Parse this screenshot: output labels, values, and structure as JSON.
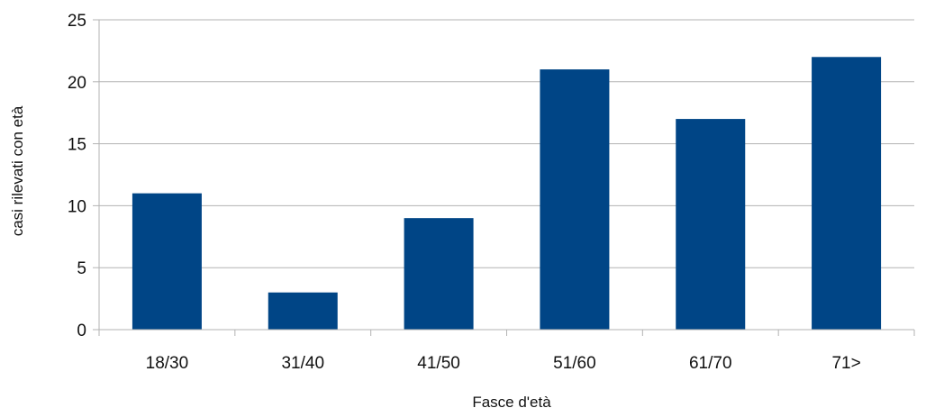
{
  "chart_data": {
    "type": "bar",
    "categories": [
      "18/30",
      "31/40",
      "41/50",
      "51/60",
      "61/70",
      "71>"
    ],
    "values": [
      11,
      3,
      9,
      21,
      17,
      22
    ],
    "xlabel": "Fasce d'età",
    "ylabel": "casi rilevati con età",
    "ylim": [
      0,
      25
    ],
    "yticks": [
      "0",
      "5",
      "10",
      "15",
      "20",
      "25"
    ],
    "grid": true,
    "legend": "none",
    "colors": {
      "bar": "#004586",
      "grid": "#b3b3b3",
      "axis": "#b3b3b3",
      "text": "#111111"
    }
  }
}
